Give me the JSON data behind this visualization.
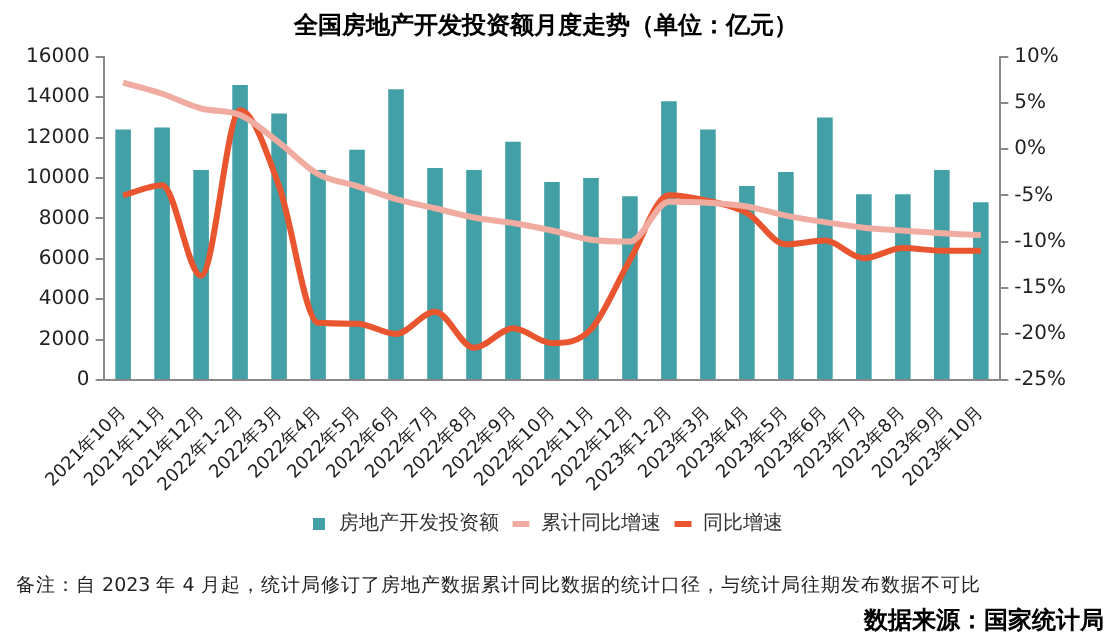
{
  "chart_data": {
    "type": "bar",
    "title": "全国房地产开发投资额月度走势（单位：亿元）",
    "categories": [
      "2021年10月",
      "2021年11月",
      "2021年12月",
      "2022年1-2月",
      "2022年3月",
      "2022年4月",
      "2022年5月",
      "2022年6月",
      "2022年7月",
      "2022年8月",
      "2022年9月",
      "2022年10月",
      "2022年11月",
      "2022年12月",
      "2023年1-2月",
      "2023年3月",
      "2023年4月",
      "2023年5月",
      "2023年6月",
      "2023年7月",
      "2023年8月",
      "2023年9月",
      "2023年10月"
    ],
    "series": [
      {
        "name": "房地产开发投资额",
        "type": "bar",
        "color": "#42a0a6",
        "values": [
          12400,
          12500,
          10400,
          14600,
          13200,
          10400,
          11400,
          14400,
          10500,
          10400,
          11800,
          9800,
          10000,
          9100,
          13800,
          12400,
          9600,
          10300,
          13000,
          9200,
          9200,
          10400,
          8800
        ]
      },
      {
        "name": "累计同比增速",
        "type": "line",
        "axis": "y2",
        "color": "#f0aca0",
        "values": [
          7.2,
          6.0,
          4.4,
          3.7,
          0.7,
          -2.7,
          -4.0,
          -5.4,
          -6.4,
          -7.4,
          -8.0,
          -8.8,
          -9.8,
          -10.0,
          -5.7,
          -5.8,
          -6.2,
          -7.2,
          -7.9,
          -8.5,
          -8.8,
          -9.1,
          -9.3
        ]
      },
      {
        "name": "同比增速",
        "type": "line",
        "axis": "y2",
        "color": "#e8552f",
        "values": [
          -5.0,
          -3.9,
          -13.7,
          4.2,
          -4.0,
          -18.8,
          -18.9,
          -20.0,
          -17.6,
          -21.5,
          -19.4,
          -21.0,
          -19.5,
          -12.0,
          -5.0,
          -5.6,
          -6.9,
          -10.3,
          -9.9,
          -11.8,
          -10.7,
          -11.0,
          -11.0
        ]
      }
    ],
    "ylim": [
      0,
      16000
    ],
    "yticks": [
      0,
      2000,
      4000,
      6000,
      8000,
      10000,
      12000,
      14000,
      16000
    ],
    "y2lim": [
      -25,
      10
    ],
    "y2ticks": [
      {
        "value": -25,
        "label": "-25%"
      },
      {
        "value": -20,
        "label": "-20%"
      },
      {
        "value": -15,
        "label": "-15%"
      },
      {
        "value": -10,
        "label": "-10%"
      },
      {
        "value": -5,
        "label": "-5%"
      },
      {
        "value": 0,
        "label": "0%"
      },
      {
        "value": 5,
        "label": "5%"
      },
      {
        "value": 10,
        "label": "10%"
      }
    ],
    "grid": false,
    "legend": "bottom",
    "annotations": [
      "备注：自 2023 年 4 月起，统计局修订了房地产数据累计同比数据的统计口径，与统计局往期发布数据不可比",
      "数据来源：国家统计局"
    ]
  }
}
